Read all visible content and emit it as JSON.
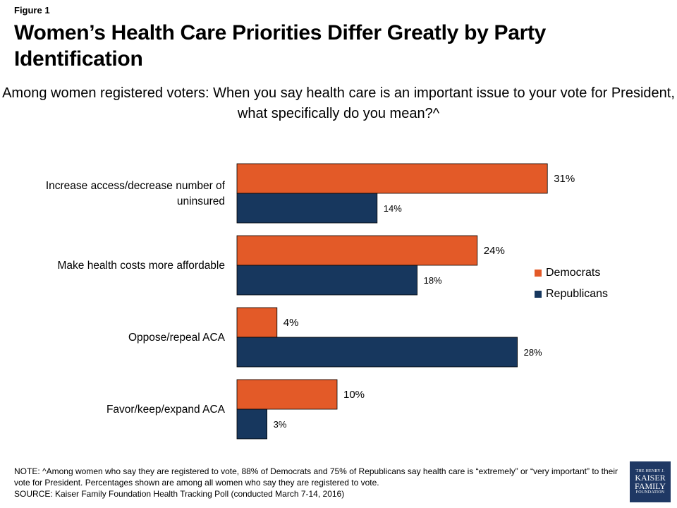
{
  "figure_label": "Figure 1",
  "title": "Women’s Health Care Priorities Differ Greatly by Party Identification",
  "subtitle": "Among women registered voters: When you say health care is an important issue to your vote for President, what specifically do you mean?^",
  "colors": {
    "democrats": "#e35a28",
    "republicans": "#17375e"
  },
  "chart_data": {
    "type": "bar",
    "orientation": "horizontal",
    "categories": [
      "Increase access/decrease number of uninsured",
      "Make health costs more affordable",
      "Oppose/repeal ACA",
      "Favor/keep/expand ACA"
    ],
    "series": [
      {
        "name": "Democrats",
        "values": [
          31,
          24,
          4,
          10
        ],
        "labels": [
          "31%",
          "24%",
          "4%",
          "10%"
        ]
      },
      {
        "name": "Republicans",
        "values": [
          14,
          18,
          28,
          3
        ],
        "labels": [
          "14%",
          "18%",
          "28%",
          "3%"
        ]
      }
    ],
    "unit": "%",
    "xlim": [
      0,
      35
    ],
    "grid": false,
    "legend_position": "right"
  },
  "legend": {
    "democrats": "Democrats",
    "republicans": "Republicans"
  },
  "note": "NOTE:  ^Among women who say they are registered to vote, 88% of Democrats and 75% of Republicans say health care is “extremely” or “very important” to their vote for President.  Percentages shown are among all women who say they are registered to vote.",
  "source": "SOURCE: Kaiser Family Foundation Health Tracking Poll (conducted March 7-14, 2016)",
  "logo": {
    "line1": "THE HENRY J.",
    "line2": "KAISER",
    "line3": "FAMILY",
    "line4": "FOUNDATION"
  }
}
